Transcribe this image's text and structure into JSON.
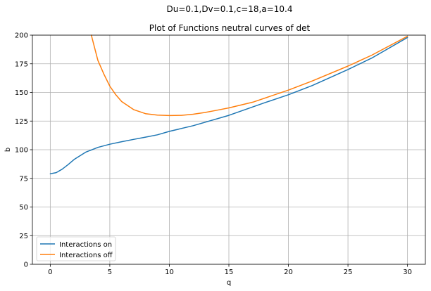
{
  "chart_data": {
    "type": "line",
    "suptitle": "Du=0.1,Dv=0.1,c=18,a=10.4",
    "title": "Plot of Functions neutral curves of det",
    "xlabel": "q",
    "ylabel": "b",
    "xlim": [
      -1.5,
      31.5
    ],
    "ylim": [
      0,
      200
    ],
    "xticks": [
      0,
      5,
      10,
      15,
      20,
      25,
      30
    ],
    "yticks": [
      0,
      25,
      50,
      75,
      100,
      125,
      150,
      175,
      200
    ],
    "grid": true,
    "legend_position": "lower-left",
    "series": [
      {
        "name": "Interactions on",
        "color": "#1f77b4",
        "points": [
          [
            0,
            79
          ],
          [
            0.5,
            80
          ],
          [
            1,
            83
          ],
          [
            1.5,
            87
          ],
          [
            2,
            91.5
          ],
          [
            3,
            98
          ],
          [
            4,
            102
          ],
          [
            5,
            104.8
          ],
          [
            6,
            107
          ],
          [
            7,
            109
          ],
          [
            8,
            111
          ],
          [
            9,
            113
          ],
          [
            10,
            116
          ],
          [
            12,
            121
          ],
          [
            15,
            130
          ],
          [
            18,
            141
          ],
          [
            20,
            148
          ],
          [
            22,
            156
          ],
          [
            25,
            170
          ],
          [
            27,
            180
          ],
          [
            30,
            198
          ]
        ]
      },
      {
        "name": "Interactions off",
        "color": "#ff7f0e",
        "points": [
          [
            3.45,
            200
          ],
          [
            3.7,
            190
          ],
          [
            4,
            178
          ],
          [
            4.5,
            166
          ],
          [
            5,
            155.5
          ],
          [
            5.5,
            148
          ],
          [
            6,
            142
          ],
          [
            7,
            135
          ],
          [
            8,
            131.5
          ],
          [
            9,
            130.2
          ],
          [
            10,
            129.8
          ],
          [
            11,
            130
          ],
          [
            12,
            131
          ],
          [
            13,
            132.5
          ],
          [
            14,
            134.5
          ],
          [
            15,
            136.5
          ],
          [
            17,
            141.5
          ],
          [
            20,
            152
          ],
          [
            22,
            160
          ],
          [
            25,
            173
          ],
          [
            27,
            182.5
          ],
          [
            30,
            199
          ]
        ]
      }
    ]
  }
}
